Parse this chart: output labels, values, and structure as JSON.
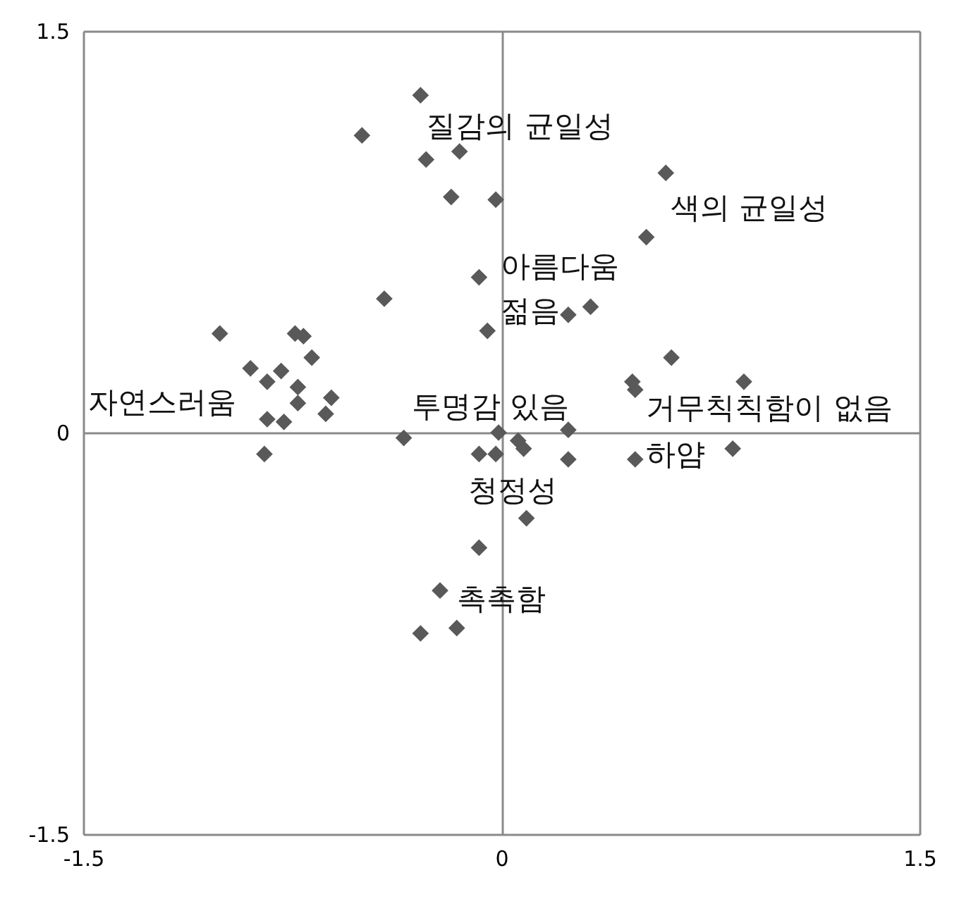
{
  "chart_data": {
    "type": "scatter",
    "xlim": [
      -1.5,
      1.5
    ],
    "ylim": [
      -1.5,
      1.5
    ],
    "xticks": [
      -1.5,
      0,
      1.5
    ],
    "yticks": [
      -1.5,
      0,
      1.5
    ],
    "grid": true,
    "marker": "diamond",
    "series": [
      {
        "color": "#595959",
        "x": [
          -0.29,
          -0.5,
          -0.27,
          -0.15,
          -0.18,
          -0.02
        ],
        "values": [
          1.26,
          1.11,
          1.02,
          1.05,
          0.88,
          0.87
        ]
      },
      {
        "color": "#595959",
        "x": [
          0.59,
          0.52
        ],
        "values": [
          0.97,
          0.73
        ]
      },
      {
        "color": "#595959",
        "x": [
          -0.08,
          -0.05,
          0.32,
          0.24
        ],
        "values": [
          0.58,
          0.38,
          0.47,
          0.44
        ]
      },
      {
        "color": "#595959",
        "x": [
          -0.42,
          -1.01,
          -0.74,
          -0.71,
          -0.68,
          -0.9,
          -0.79,
          -0.84,
          -0.73,
          -0.61,
          -0.73,
          -0.63,
          -0.84,
          -0.78,
          -0.85
        ],
        "values": [
          0.5,
          0.37,
          0.37,
          0.36,
          0.28,
          0.24,
          0.23,
          0.19,
          0.17,
          0.13,
          0.11,
          0.07,
          0.05,
          0.04,
          -0.08
        ]
      },
      {
        "color": "#595959",
        "x": [
          -0.35,
          -0.01,
          0.06,
          0.08,
          -0.08,
          -0.02,
          0.24,
          0.24,
          0.09,
          -0.08
        ],
        "values": [
          -0.02,
          0.0,
          -0.03,
          -0.06,
          -0.08,
          -0.08,
          -0.1,
          0.01,
          -0.32,
          -0.43
        ]
      },
      {
        "color": "#595959",
        "x": [
          0.61,
          0.47,
          0.48,
          0.87,
          0.83,
          0.48
        ],
        "values": [
          0.28,
          0.19,
          0.16,
          0.19,
          -0.06,
          -0.1
        ]
      },
      {
        "color": "#595959",
        "x": [
          -0.22,
          -0.29,
          -0.16
        ],
        "values": [
          -0.59,
          -0.75,
          -0.73
        ]
      }
    ],
    "annotations": [
      "질감의 균일성",
      "색의 균일성",
      "아름다움",
      "젊음",
      "자연스러움",
      "투명감 있음",
      "거무칙칙함이 없음",
      "하얌",
      "청정성",
      "촉촉함"
    ]
  }
}
